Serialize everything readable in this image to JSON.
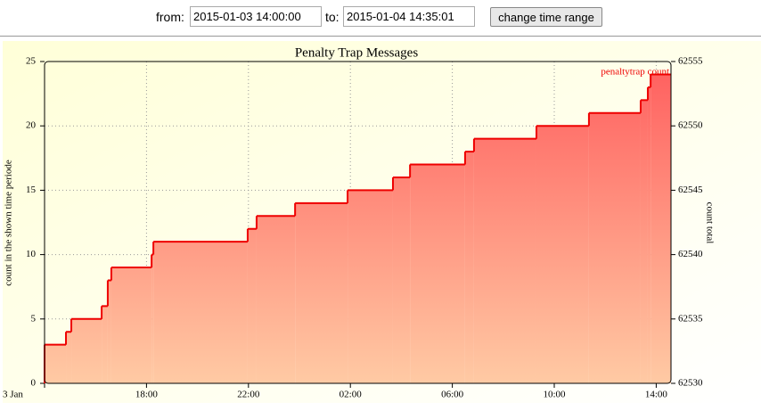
{
  "form": {
    "from_label": "from:",
    "from_value": "2015-01-03 14:00:00",
    "to_label": "to:",
    "to_value": "2015-01-04 14:35:01",
    "button": "change time range"
  },
  "chart_data": {
    "type": "step-area",
    "title": "Penalty Trap Messages",
    "y_label": "count in the shown time periode",
    "y2_label": "count total",
    "x_unit_hours_from_start": true,
    "x": [
      0,
      0,
      0.84,
      1.05,
      2.24,
      2.48,
      2.62,
      4.2,
      4.27,
      7.97,
      8.32,
      9.83,
      11.89,
      13.67,
      14.34,
      16.5,
      16.85,
      19.3,
      21.36,
      23.39,
      23.67,
      23.78,
      24.58
    ],
    "series": [
      {
        "name": "penaltytrap count",
        "color": "#ee0000",
        "values": [
          0,
          3,
          4,
          5,
          6,
          8,
          9,
          10,
          11,
          12,
          13,
          14,
          15,
          16,
          17,
          18,
          19,
          20,
          21,
          22,
          23,
          24,
          24
        ]
      }
    ],
    "xlim": [
      0,
      24.58
    ],
    "xticks": [
      {
        "value": 0,
        "label": "3 Jan"
      },
      {
        "value": 4,
        "label": "18:00"
      },
      {
        "value": 8,
        "label": "22:00"
      },
      {
        "value": 12,
        "label": "02:00"
      },
      {
        "value": 16,
        "label": "06:00"
      },
      {
        "value": 20,
        "label": "10:00"
      },
      {
        "value": 24,
        "label": "14:00"
      }
    ],
    "ylim": [
      0,
      25
    ],
    "yticks": [
      0,
      5,
      10,
      15,
      20,
      25
    ],
    "y2lim": [
      62530,
      62555
    ],
    "y2ticks": [
      62530,
      62535,
      62540,
      62545,
      62550,
      62555
    ],
    "grid": true,
    "legend": "top-right"
  }
}
